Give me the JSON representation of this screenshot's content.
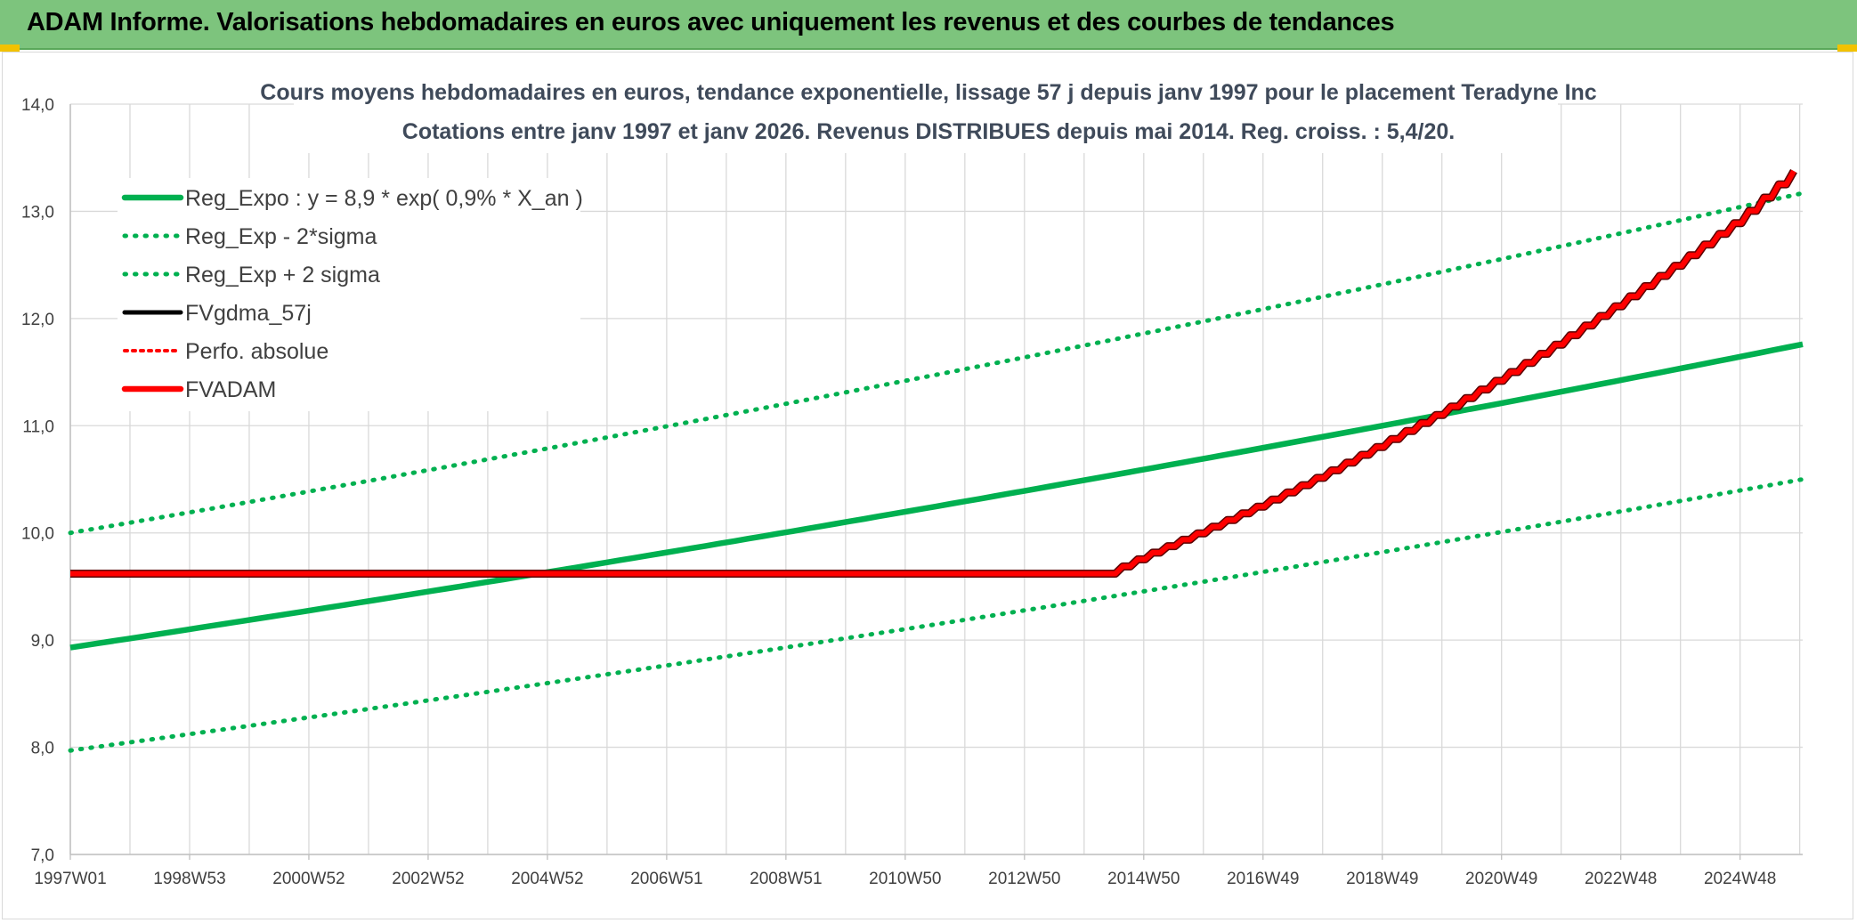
{
  "header": {
    "title": "ADAM Informe. Valorisations hebdomadaires en euros avec uniquement les revenus et des courbes de tendances"
  },
  "colors": {
    "banner": "#7dc47d",
    "reg_expo": "#00b050",
    "fvadam": "#ff0000",
    "fvgdma": "#000000"
  },
  "chart_data": {
    "type": "line",
    "title_line1": "Cours moyens hebdomadaires en euros, tendance exponentielle, lissage 57 j depuis janv 1997 pour le placement Teradyne Inc",
    "title_line2": "Cotations entre janv 1997 et janv 2026. Revenus DISTRIBUES depuis mai 2014. Reg. croiss. : 5,4/20.",
    "x_tick_labels": [
      "1997W01",
      "1998W53",
      "2000W52",
      "2002W52",
      "2004W52",
      "2006W51",
      "2008W51",
      "2010W50",
      "2012W50",
      "2014W50",
      "2016W49",
      "2018W49",
      "2020W49",
      "2022W48",
      "2024W48"
    ],
    "x_tick_years": [
      1997.0,
      1999.0,
      2001.0,
      2003.0,
      2005.0,
      2007.0,
      2009.0,
      2011.0,
      2013.0,
      2015.0,
      2017.0,
      2019.0,
      2021.0,
      2023.0,
      2025.0
    ],
    "x_range_years": [
      1997.0,
      2026.05
    ],
    "ylim": [
      7.0,
      14.0
    ],
    "y_ticks": [
      "7,0",
      "8,0",
      "9,0",
      "10,0",
      "11,0",
      "12,0",
      "13,0",
      "14,0"
    ],
    "y_tick_values": [
      7,
      8,
      9,
      10,
      11,
      12,
      13,
      14
    ],
    "grid": true,
    "legend_position": "top-left",
    "legend": [
      {
        "label": "Reg_Expo : y = 8,9 * exp( 0,9% *  X_an )",
        "style": "solid-green"
      },
      {
        "label": "Reg_Exp - 2*sigma",
        "style": "dotted-green"
      },
      {
        "label": "Reg_Exp + 2 sigma",
        "style": "dotted-green"
      },
      {
        "label": "FVgdma_57j",
        "style": "solid-black"
      },
      {
        "label": "Perfo. absolue",
        "style": "dotted-red"
      },
      {
        "label": "FVADAM",
        "style": "solid-red"
      }
    ],
    "series": [
      {
        "name": "Reg_Expo : y = 8,9 * exp( 0,9% *  X_an )",
        "x": [
          1997.0,
          2026.05
        ],
        "y": [
          8.93,
          11.76
        ],
        "curve": "exponential"
      },
      {
        "name": "Reg_Exp - 2*sigma",
        "x": [
          1997.0,
          2026.05
        ],
        "y": [
          7.97,
          10.5
        ],
        "curve": "exponential"
      },
      {
        "name": "Reg_Exp + 2 sigma",
        "x": [
          1997.0,
          2026.05
        ],
        "y": [
          10.0,
          13.17
        ],
        "curve": "exponential"
      },
      {
        "name": "FVADAM",
        "x": [
          1997.0,
          2014.4,
          2015.0,
          2016.0,
          2017.0,
          2018.0,
          2019.0,
          2020.0,
          2021.0,
          2022.0,
          2023.0,
          2024.0,
          2025.0,
          2026.05
        ],
        "y": [
          9.62,
          9.62,
          9.78,
          10.02,
          10.27,
          10.54,
          10.83,
          11.13,
          11.45,
          11.79,
          12.15,
          12.53,
          12.93,
          13.45
        ],
        "step": "weekly-staircase"
      }
    ]
  }
}
